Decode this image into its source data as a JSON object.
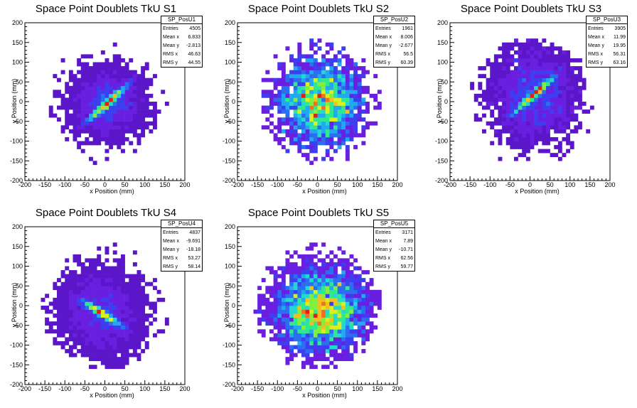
{
  "chart_data": [
    {
      "type": "heatmap",
      "title": "Space Point Doublets TkU S1",
      "xlabel": "x Position (mm)",
      "ylabel": "y Position (mm)",
      "xlim": [
        -200,
        200
      ],
      "ylim": [
        -200,
        200
      ],
      "xticks": [
        "-200",
        "-150",
        "-100",
        "-50",
        "0",
        "50",
        "100",
        "150",
        "200"
      ],
      "yticks": [
        "200",
        "150",
        "100",
        "50",
        "0",
        "-50",
        "-100",
        "-150",
        "-200"
      ],
      "stats": {
        "name": "SP_PosU1",
        "rows": [
          [
            "Entries",
            "4505"
          ],
          [
            "Mean x",
            "6.833"
          ],
          [
            "Mean y",
            "-2.813"
          ],
          [
            "RMS x",
            "46.63"
          ],
          [
            "RMS y",
            "44.55"
          ]
        ]
      },
      "pattern": {
        "entries": 4505,
        "mean_x": 6.833,
        "mean_y": -2.813,
        "rms_x": 46.63,
        "rms_y": 44.55,
        "band_slope": 0.9,
        "band_strength": 0.9
      }
    },
    {
      "type": "heatmap",
      "title": "Space Point Doublets TkU S2",
      "xlabel": "x Position (mm)",
      "ylabel": "y Position (mm)",
      "xlim": [
        -200,
        200
      ],
      "ylim": [
        -200,
        200
      ],
      "xticks": [
        "-200",
        "-150",
        "-100",
        "-50",
        "0",
        "50",
        "100",
        "150",
        "200"
      ],
      "yticks": [
        "200",
        "150",
        "100",
        "50",
        "0",
        "-50",
        "-100",
        "-150",
        "-200"
      ],
      "stats": {
        "name": "SP_PosU2",
        "rows": [
          [
            "Entries",
            "1961"
          ],
          [
            "Mean x",
            "8.006"
          ],
          [
            "Mean y",
            "-2.677"
          ],
          [
            "RMS x",
            "56.5"
          ],
          [
            "RMS y",
            "60.39"
          ]
        ]
      },
      "pattern": {
        "entries": 1961,
        "mean_x": 8.006,
        "mean_y": -2.677,
        "rms_x": 56.5,
        "rms_y": 60.39,
        "band_slope": 0.0,
        "band_strength": 0.0
      }
    },
    {
      "type": "heatmap",
      "title": "Space Point Doublets TkU S3",
      "xlabel": "x Position (mm)",
      "ylabel": "y Position (mm)",
      "xlim": [
        -200,
        200
      ],
      "ylim": [
        -200,
        200
      ],
      "xticks": [
        "-200",
        "-150",
        "-100",
        "-50",
        "0",
        "50",
        "100",
        "150",
        "200"
      ],
      "yticks": [
        "200",
        "150",
        "100",
        "50",
        "0",
        "-50",
        "-100",
        "-150",
        "-200"
      ],
      "stats": {
        "name": "SP_PosU3",
        "rows": [
          [
            "Entries",
            "3905"
          ],
          [
            "Mean x",
            "11.99"
          ],
          [
            "Mean y",
            "19.95"
          ],
          [
            "RMS x",
            "56.31"
          ],
          [
            "RMS y",
            "63.16"
          ]
        ]
      },
      "pattern": {
        "entries": 3905,
        "mean_x": 11.99,
        "mean_y": 19.95,
        "rms_x": 56.31,
        "rms_y": 63.16,
        "band_slope": 0.9,
        "band_strength": 0.7
      }
    },
    {
      "type": "heatmap",
      "title": "Space Point Doublets TkU S4",
      "xlabel": "x Position (mm)",
      "ylabel": "y Position (mm)",
      "xlim": [
        -200,
        200
      ],
      "ylim": [
        -200,
        200
      ],
      "xticks": [
        "-200",
        "-150",
        "-100",
        "-50",
        "0",
        "50",
        "100",
        "150",
        "200"
      ],
      "yticks": [
        "200",
        "150",
        "100",
        "50",
        "0",
        "-50",
        "-100",
        "-150",
        "-200"
      ],
      "stats": {
        "name": "SP_PosU4",
        "rows": [
          [
            "Entries",
            "4837"
          ],
          [
            "Mean x",
            "-9.691"
          ],
          [
            "Mean y",
            "-18.18"
          ],
          [
            "RMS x",
            "53.27"
          ],
          [
            "RMS y",
            "58.14"
          ]
        ]
      },
      "pattern": {
        "entries": 4837,
        "mean_x": -9.691,
        "mean_y": -18.18,
        "rms_x": 53.27,
        "rms_y": 58.14,
        "band_slope": -0.6,
        "band_strength": 0.9
      }
    },
    {
      "type": "heatmap",
      "title": "Space Point Doublets TkU S5",
      "xlabel": "x Position (mm)",
      "ylabel": "y Position (mm)",
      "xlim": [
        -200,
        200
      ],
      "ylim": [
        -200,
        200
      ],
      "xticks": [
        "-200",
        "-150",
        "-100",
        "-50",
        "0",
        "50",
        "100",
        "150",
        "200"
      ],
      "yticks": [
        "200",
        "150",
        "100",
        "50",
        "0",
        "-50",
        "-100",
        "-150",
        "-200"
      ],
      "stats": {
        "name": "SP_PosU5",
        "rows": [
          [
            "Entries",
            "3171"
          ],
          [
            "Mean x",
            "7.89"
          ],
          [
            "Mean y",
            "-10.71"
          ],
          [
            "RMS x",
            "62.56"
          ],
          [
            "RMS y",
            "59.77"
          ]
        ]
      },
      "pattern": {
        "entries": 3171,
        "mean_x": 7.89,
        "mean_y": -10.71,
        "rms_x": 62.56,
        "rms_y": 59.77,
        "band_slope": 0.0,
        "band_strength": 0.0
      }
    }
  ],
  "colors": {
    "palette": [
      "#5a16c8",
      "#6a1fe0",
      "#3c3ef0",
      "#2a6ff0",
      "#20a8f0",
      "#22d8d0",
      "#30e890",
      "#80f040",
      "#d8f020",
      "#f0c020",
      "#f07020",
      "#e02010"
    ]
  }
}
